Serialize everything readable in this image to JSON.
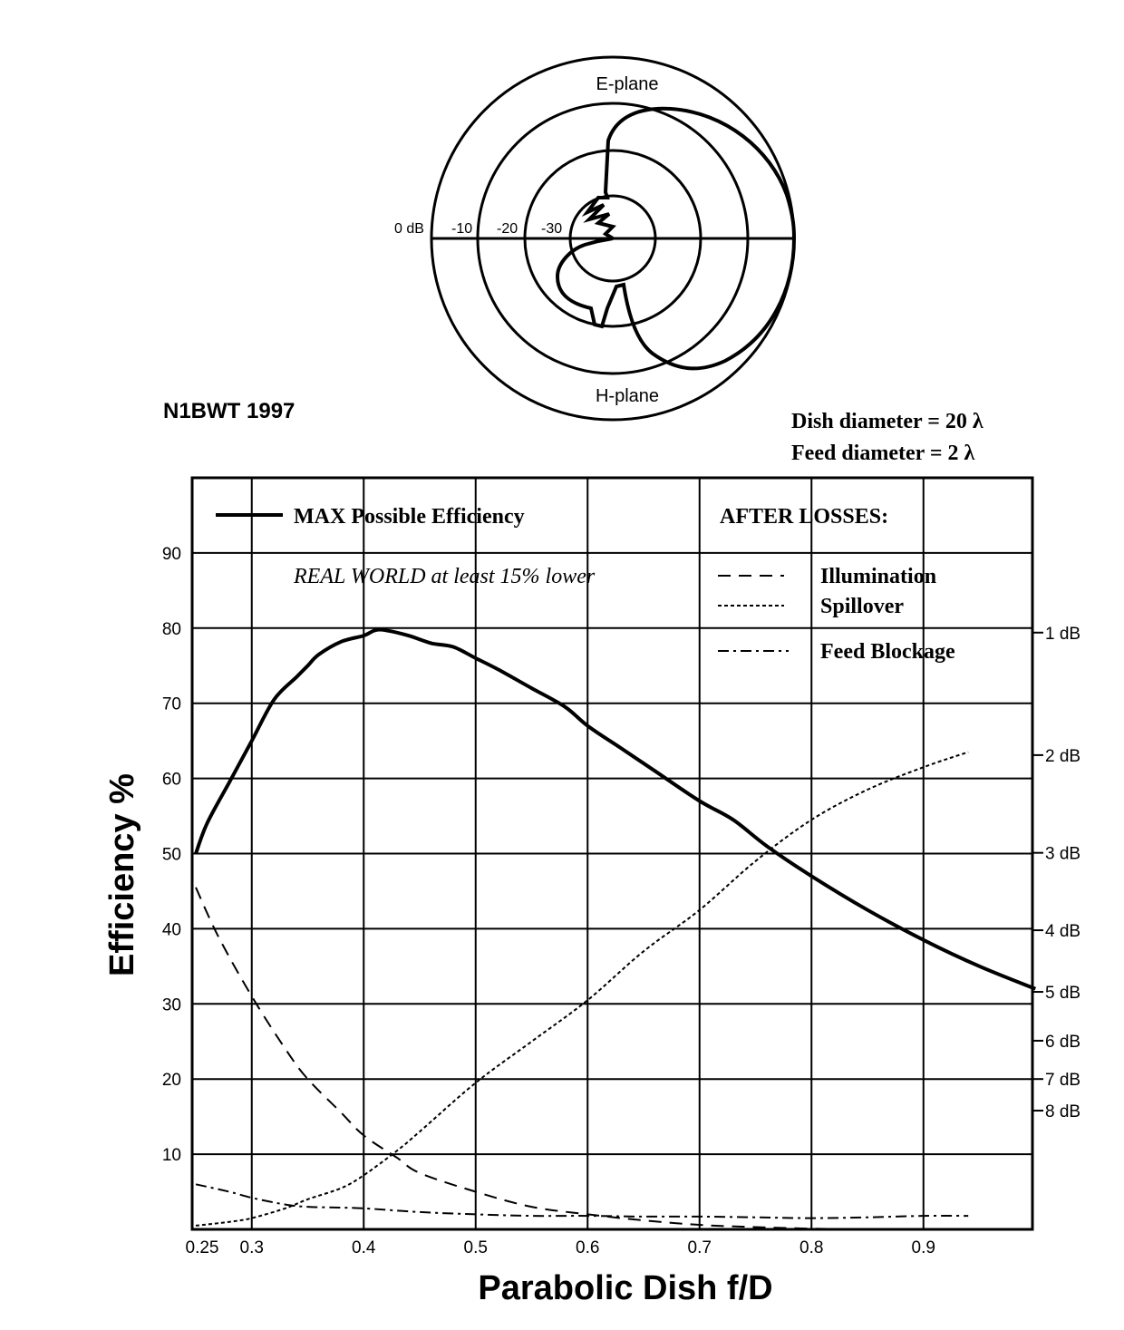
{
  "author": "N1BWT 1997",
  "dish_diameter": "Dish diameter = 20 λ",
  "feed_diameter": "Feed diameter = 2 λ",
  "polar": {
    "top_label": "E-plane",
    "bottom_label": "H-plane",
    "ring_labels": [
      "0 dB",
      "-10",
      "-20",
      "-30"
    ]
  },
  "legend": {
    "max_label": "MAX Possible Efficiency",
    "real_world_note": "REAL WORLD at least 15% lower",
    "after_losses": "AFTER LOSSES:",
    "illumination": "Illumination",
    "spillover": "Spillover",
    "feed_blockage": "Feed Blockage"
  },
  "chart_data": {
    "type": "line",
    "xlabel": "Parabolic Dish f/D",
    "ylabel": "Efficiency %",
    "xlim": [
      0.25,
      1.0
    ],
    "ylim": [
      0,
      100
    ],
    "x_ticks": [
      0.25,
      0.3,
      0.4,
      0.5,
      0.6,
      0.7,
      0.8,
      0.9
    ],
    "x_tick_labels": [
      "0.25",
      "0.3",
      "0.4",
      "0.5",
      "0.6",
      "0.7",
      "0.8",
      "0.9"
    ],
    "y_ticks": [
      10,
      20,
      30,
      40,
      50,
      60,
      70,
      80,
      90
    ],
    "y_tick_labels": [
      "10",
      "20",
      "30",
      "40",
      "50",
      "60",
      "70",
      "80",
      "90"
    ],
    "right_axis": [
      {
        "label": "1 dB",
        "y": 79.4
      },
      {
        "label": "2 dB",
        "y": 63.1
      },
      {
        "label": "3 dB",
        "y": 50.1
      },
      {
        "label": "4 dB",
        "y": 39.8
      },
      {
        "label": "5 dB",
        "y": 31.6
      },
      {
        "label": "6 dB",
        "y": 25.1
      },
      {
        "label": "7 dB",
        "y": 20.0
      },
      {
        "label": "8 dB",
        "y": 15.8
      }
    ],
    "grid": true,
    "series": [
      {
        "name": "MAX Possible Efficiency",
        "style": "solid",
        "x": [
          0.25,
          0.26,
          0.28,
          0.3,
          0.32,
          0.34,
          0.35,
          0.36,
          0.38,
          0.4,
          0.41,
          0.42,
          0.44,
          0.46,
          0.48,
          0.5,
          0.52,
          0.55,
          0.58,
          0.6,
          0.63,
          0.66,
          0.7,
          0.73,
          0.76,
          0.8,
          0.85,
          0.9,
          0.95,
          1.0
        ],
        "y": [
          50,
          54,
          59.5,
          65,
          70.5,
          73.5,
          75,
          76.5,
          78.2,
          79,
          79.7,
          79.7,
          79,
          78,
          77.5,
          76,
          74.5,
          72,
          69.5,
          67,
          64,
          61,
          57,
          54.5,
          51,
          47,
          42.5,
          38.5,
          35,
          32
        ]
      },
      {
        "name": "Illumination",
        "style": "dashed",
        "x": [
          0.25,
          0.27,
          0.3,
          0.33,
          0.35,
          0.38,
          0.4,
          0.43,
          0.45,
          0.5,
          0.55,
          0.6,
          0.65,
          0.7,
          0.75,
          0.8,
          0.85,
          0.9,
          0.95
        ],
        "y": [
          45.5,
          39,
          31,
          24,
          20,
          15.5,
          12.5,
          9.5,
          7.5,
          5,
          3,
          2,
          1.2,
          0.6,
          0.3,
          0.1,
          0,
          0,
          0
        ]
      },
      {
        "name": "Spillover",
        "style": "dotted",
        "x": [
          0.25,
          0.28,
          0.3,
          0.33,
          0.35,
          0.38,
          0.4,
          0.43,
          0.45,
          0.5,
          0.55,
          0.6,
          0.65,
          0.7,
          0.75,
          0.8,
          0.85,
          0.9,
          0.94
        ],
        "y": [
          0.5,
          1,
          1.5,
          2.8,
          4,
          5.5,
          7.2,
          10.5,
          13,
          19.5,
          25,
          30.5,
          37,
          42.5,
          49,
          54.5,
          58.5,
          61.5,
          63.5
        ]
      },
      {
        "name": "Feed Blockage",
        "style": "dashdot",
        "x": [
          0.25,
          0.28,
          0.3,
          0.33,
          0.35,
          0.38,
          0.4,
          0.45,
          0.5,
          0.55,
          0.6,
          0.65,
          0.7,
          0.75,
          0.8,
          0.85,
          0.9,
          0.94
        ],
        "y": [
          6,
          5,
          4.2,
          3.3,
          3,
          2.9,
          2.8,
          2.3,
          2,
          1.8,
          1.8,
          1.7,
          1.7,
          1.6,
          1.5,
          1.6,
          1.8,
          1.8
        ]
      }
    ]
  }
}
